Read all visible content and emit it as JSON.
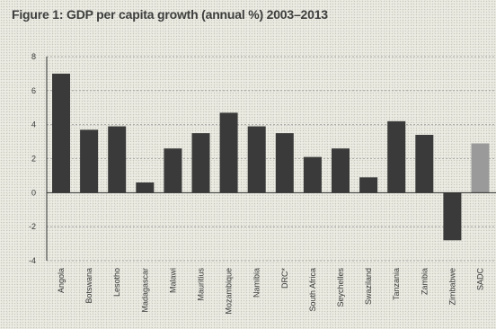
{
  "title": "Figure 1: GDP per capita growth (annual %) 2003–2013",
  "colors": {
    "bar": "#3a3a3a",
    "highlight": "#9a9a9a",
    "grid": "#9a9a9a",
    "axis": "#2e2e2e",
    "background": "#ecece4"
  },
  "chart_data": {
    "type": "bar",
    "title": "Figure 1: GDP per capita growth (annual %) 2003–2013",
    "xlabel": "",
    "ylabel": "",
    "categories": [
      "Angola",
      "Botswana",
      "Lesotho",
      "Madagascar",
      "Malawi",
      "Mauritius",
      "Mozambique",
      "Namibia",
      "DRC*",
      "South Africa",
      "Seychelles",
      "Swaziland",
      "Tanzania",
      "Zambia",
      "Zimbabwe",
      "SADC"
    ],
    "values": [
      7.0,
      3.7,
      3.9,
      0.6,
      2.6,
      3.5,
      4.7,
      3.9,
      3.5,
      2.1,
      2.6,
      0.9,
      4.2,
      3.4,
      -2.8,
      2.9
    ],
    "highlight_category": "SADC",
    "ylim": [
      -4,
      8
    ],
    "yticks": [
      -4,
      -2,
      0,
      2,
      4,
      6,
      8
    ],
    "grid": true,
    "legend": "none"
  }
}
